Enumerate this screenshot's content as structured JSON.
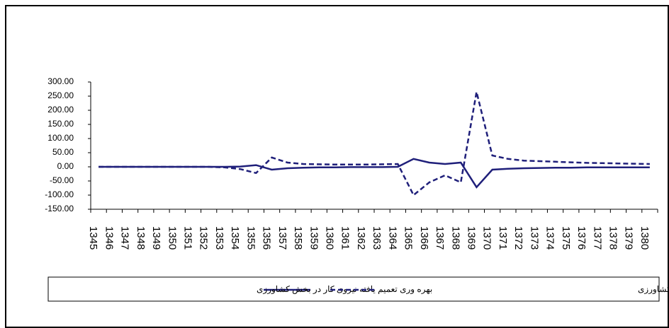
{
  "chart_data": {
    "type": "line",
    "categories": [
      "1345",
      "1346",
      "1347",
      "1348",
      "1349",
      "1350",
      "1351",
      "1352",
      "1353",
      "1354",
      "1355",
      "1356",
      "1357",
      "1358",
      "1359",
      "1360",
      "1361",
      "1362",
      "1363",
      "1364",
      "1365",
      "1366",
      "1367",
      "1368",
      "1369",
      "1370",
      "1371",
      "1372",
      "1373",
      "1374",
      "1375",
      "1376",
      "1377",
      "1378",
      "1379",
      "1380"
    ],
    "series": [
      {
        "name": "بهره وری تعمیم یافته نیروی کار در بخش کشاورزی",
        "color": "#1f1f7a",
        "dash": false,
        "values": [
          0,
          0,
          0,
          0,
          0,
          0,
          0,
          0,
          0,
          1,
          6,
          -10,
          -5,
          -3,
          -2,
          -2,
          -1,
          -1,
          -1,
          0,
          28,
          15,
          10,
          15,
          -72,
          -10,
          -7,
          -5,
          -4,
          -3,
          -3,
          -2,
          -2,
          -2,
          -2,
          -2
        ]
      },
      {
        "name": "بهره وری تعمیم یافته سرمایه در بخش کشاورزی",
        "color": "#1f1f7a",
        "dash": true,
        "values": [
          0,
          0,
          0,
          0,
          0,
          0,
          0,
          0,
          -2,
          -8,
          -22,
          33,
          15,
          10,
          9,
          8,
          8,
          8,
          9,
          10,
          -100,
          -55,
          -30,
          -55,
          265,
          40,
          28,
          22,
          20,
          18,
          16,
          14,
          13,
          12,
          11,
          10
        ]
      }
    ],
    "ylim": [
      -150,
      300
    ],
    "yticks": [
      {
        "value": -150,
        "label": "-150.00"
      },
      {
        "value": -100,
        "label": "-100.00"
      },
      {
        "value": -50,
        "label": "-50.00"
      },
      {
        "value": 0,
        "label": "0.00"
      },
      {
        "value": 50,
        "label": "50.00"
      },
      {
        "value": 100,
        "label": "100.00"
      },
      {
        "value": 150,
        "label": "150.00"
      },
      {
        "value": 200,
        "label": "200.00"
      },
      {
        "value": 250,
        "label": "250.00"
      },
      {
        "value": 300,
        "label": "300.00"
      }
    ]
  }
}
